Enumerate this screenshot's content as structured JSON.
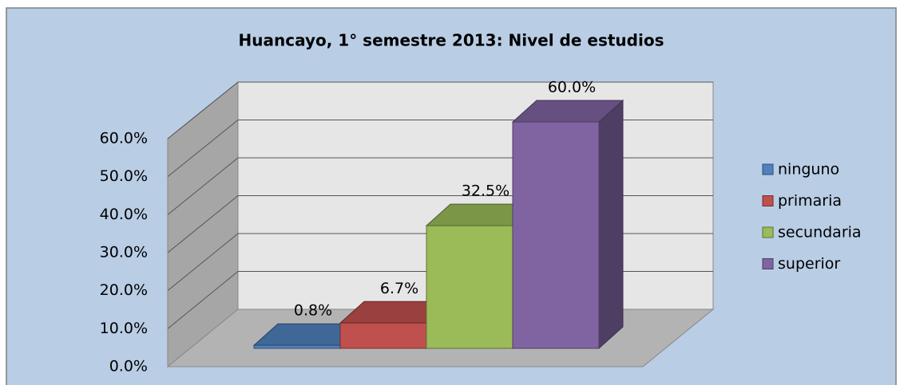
{
  "chart_data": {
    "type": "bar",
    "title": "Huancayo, 1° semestre 2013: Nivel de estudios",
    "series": [
      {
        "name": "ninguno",
        "color": "#4f81bd",
        "values": [
          0.8
        ],
        "value_labels": [
          "0.8%"
        ]
      },
      {
        "name": "primaria",
        "color": "#c0504d",
        "values": [
          6.7
        ],
        "value_labels": [
          "6.7%"
        ]
      },
      {
        "name": "secundaria",
        "color": "#9bbb59",
        "values": [
          32.5
        ],
        "value_labels": [
          "32.5%"
        ]
      },
      {
        "name": "superior",
        "color": "#8064a2",
        "values": [
          60.0
        ],
        "value_labels": [
          "60.0%"
        ]
      }
    ],
    "ylim": [
      0,
      60
    ],
    "yticks": [
      {
        "value": 0,
        "label": "0.0%"
      },
      {
        "value": 10,
        "label": "10.0%"
      },
      {
        "value": 20,
        "label": "20.0%"
      },
      {
        "value": 30,
        "label": "30.0%"
      },
      {
        "value": 40,
        "label": "40.0%"
      },
      {
        "value": 50,
        "label": "50.0%"
      },
      {
        "value": 60,
        "label": "60.0%"
      }
    ],
    "grid": true,
    "legend": "right"
  }
}
